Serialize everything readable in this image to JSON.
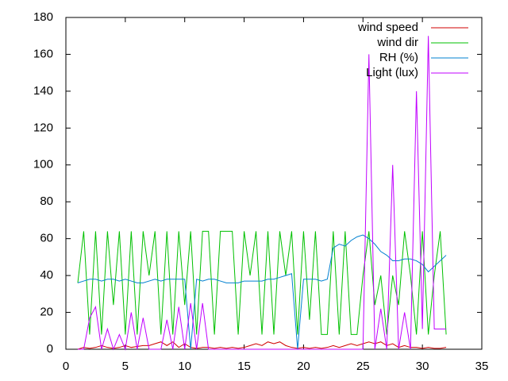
{
  "chart_data": {
    "type": "line",
    "x": [
      1,
      1.5,
      2,
      2.5,
      3,
      3.5,
      4,
      4.5,
      5,
      5.5,
      6,
      6.5,
      7,
      7.5,
      8,
      8.5,
      9,
      9.5,
      10,
      10.5,
      11,
      11.5,
      12,
      12.5,
      13,
      13.5,
      14,
      14.5,
      15,
      15.5,
      16,
      16.5,
      17,
      17.5,
      18,
      18.5,
      19,
      19.5,
      20,
      20.5,
      21,
      21.5,
      22,
      22.5,
      23,
      23.5,
      24,
      24.5,
      25,
      25.5,
      26,
      26.5,
      27,
      27.5,
      28,
      28.5,
      29,
      29.5,
      30,
      30.5,
      31,
      31.5,
      32
    ],
    "series": [
      {
        "name": "wind speed",
        "color": "#d00000",
        "values": [
          0,
          1,
          0.5,
          1,
          2,
          1,
          0.5,
          1,
          2,
          1,
          1.5,
          2,
          2,
          3,
          4,
          2,
          4,
          1,
          3,
          1,
          0.5,
          1,
          1,
          0.5,
          1,
          0.5,
          1,
          0.5,
          1,
          2,
          3,
          2,
          4,
          3,
          4,
          2,
          1,
          0.5,
          1,
          0.5,
          1,
          0.5,
          1,
          2,
          1,
          2,
          3,
          2,
          3,
          4,
          3,
          4,
          2,
          3,
          1,
          2,
          1,
          1,
          0.5,
          1,
          0.5,
          0.5,
          1
        ]
      },
      {
        "name": "wind dir",
        "color": "#00c000",
        "values": [
          36,
          64,
          8,
          64,
          8,
          64,
          24,
          64,
          8,
          64,
          8,
          64,
          40,
          64,
          8,
          64,
          8,
          64,
          24,
          64,
          8,
          64,
          64,
          8,
          64,
          64,
          64,
          8,
          64,
          40,
          64,
          8,
          64,
          8,
          64,
          40,
          64,
          8,
          64,
          16,
          64,
          8,
          8,
          64,
          8,
          64,
          8,
          8,
          40,
          64,
          24,
          40,
          8,
          40,
          24,
          64,
          40,
          8,
          64,
          8,
          40,
          64,
          8
        ]
      },
      {
        "name": "RH (%)",
        "color": "#0080d0",
        "values": [
          36,
          37,
          38,
          38,
          37,
          38,
          38,
          37,
          38,
          37,
          36,
          36,
          37,
          38,
          37,
          38,
          38,
          38,
          38,
          0,
          38,
          37,
          38,
          38,
          37,
          36,
          36,
          36,
          37,
          37,
          37,
          37,
          38,
          38,
          39,
          40,
          41,
          0,
          38,
          38,
          38,
          37,
          38,
          55,
          57,
          56,
          59,
          61,
          62,
          60,
          57,
          53,
          51,
          48,
          48,
          49,
          49,
          48,
          46,
          42,
          45,
          48,
          51
        ]
      },
      {
        "name": "Light (lux)",
        "color": "#c000ff",
        "values": [
          0,
          0,
          17,
          23,
          0,
          11,
          0,
          8,
          0,
          20,
          0,
          17,
          0,
          0,
          0,
          16,
          0,
          23,
          0,
          25,
          0,
          25,
          0,
          0,
          0,
          0,
          0,
          0,
          0,
          0,
          0,
          0,
          0,
          0,
          0,
          0,
          0,
          0,
          0,
          0,
          0,
          0,
          0,
          0,
          0,
          0,
          0,
          0,
          0,
          160,
          0,
          22,
          0,
          100,
          0,
          20,
          0,
          140,
          11,
          170,
          11,
          11,
          11
        ]
      }
    ],
    "xlim": [
      0,
      35
    ],
    "xticks": [
      0,
      5,
      10,
      15,
      20,
      25,
      30,
      35
    ],
    "ylim": [
      0,
      180
    ],
    "yticks": [
      0,
      20,
      40,
      60,
      80,
      100,
      120,
      140,
      160,
      180
    ],
    "legend": "top-right"
  }
}
